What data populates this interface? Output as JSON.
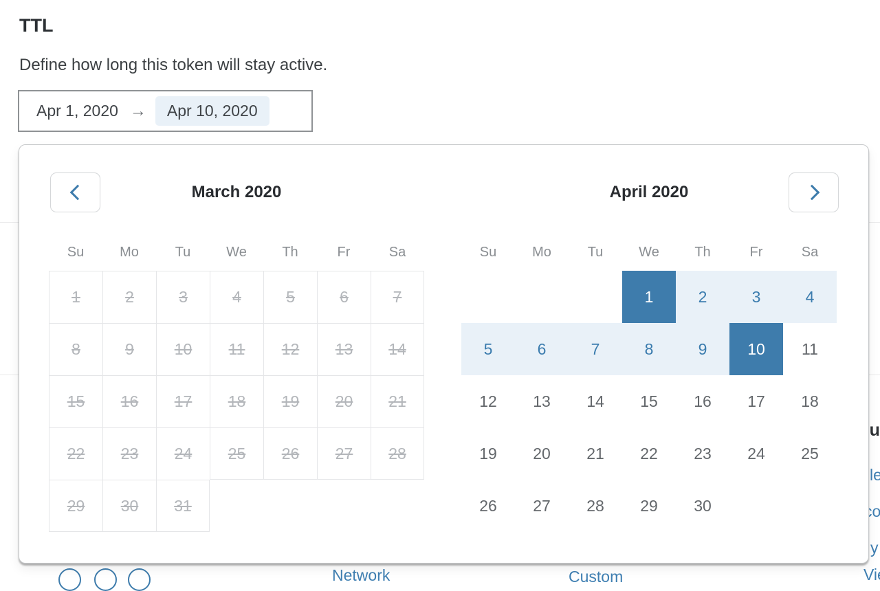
{
  "page": {
    "title": "TTL",
    "subtitle": "Define how long this token will stay active."
  },
  "range_input": {
    "start_value": "Apr 1, 2020",
    "arrow": "→",
    "end_value": "Apr 10, 2020"
  },
  "calendar": {
    "weekdays": [
      "Su",
      "Mo",
      "Tu",
      "We",
      "Th",
      "Fr",
      "Sa"
    ],
    "months": [
      {
        "title": "March 2020",
        "first_day_col": 0,
        "num_days": 31,
        "disabled": true,
        "bordered": true
      },
      {
        "title": "April 2020",
        "first_day_col": 3,
        "num_days": 30,
        "disabled": false,
        "bordered": false,
        "range_start": 1,
        "range_end": 10
      }
    ],
    "icons": {
      "prev": "chevron-left",
      "next": "chevron-right"
    }
  },
  "background": {
    "heading_fragment": "Su",
    "link_fragments": {
      "right_1": "le",
      "right_2": "co",
      "right_3": "y",
      "bottom_1": "Network",
      "bottom_2": "Custom",
      "bottom_3": "View"
    }
  },
  "colors": {
    "accent": "#3e7cac",
    "accent-text": "#3b7cae",
    "band": "#e9f1f8",
    "link": "#3f7fb2",
    "disabled": "#b3b6ba",
    "day": "#63676b",
    "weekday": "#8a8e92",
    "title": "#292c30",
    "grid-border": "#e5e6e8"
  }
}
